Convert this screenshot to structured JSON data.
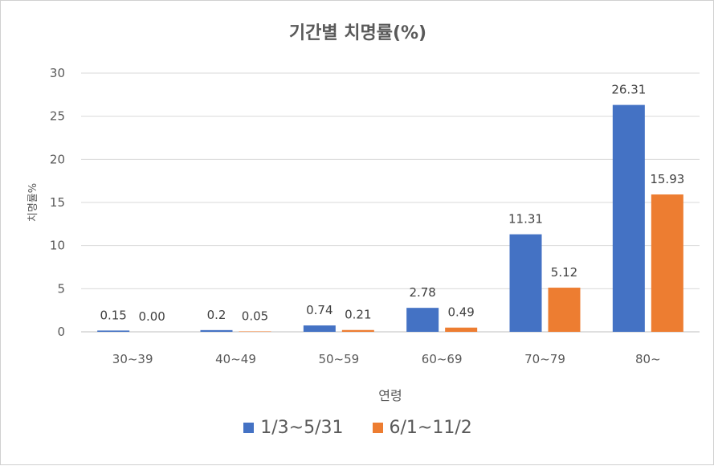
{
  "chart_data": {
    "type": "bar",
    "title": "기간별 치명률(%)",
    "xlabel": "연령",
    "ylabel": "치명률%",
    "categories": [
      "30~39",
      "40~49",
      "50~59",
      "60~69",
      "70~79",
      "80~"
    ],
    "series": [
      {
        "name": "1/3~5/31",
        "color": "#4472C4",
        "values": [
          0.15,
          0.2,
          0.74,
          2.78,
          11.31,
          26.31
        ],
        "labels": [
          "0.15",
          "0.2",
          "0.74",
          "2.78",
          "11.31",
          "26.31"
        ]
      },
      {
        "name": "6/1~11/2",
        "color": "#ED7D31",
        "values": [
          0.0,
          0.05,
          0.21,
          0.49,
          5.12,
          15.93
        ],
        "labels": [
          "0.00",
          "0.05",
          "0.21",
          "0.49",
          "5.12",
          "15.93"
        ]
      }
    ],
    "ylim": [
      0,
      30
    ],
    "yticks": [
      0,
      5,
      10,
      15,
      20,
      25,
      30
    ],
    "grid": true,
    "legend": "bottom"
  }
}
